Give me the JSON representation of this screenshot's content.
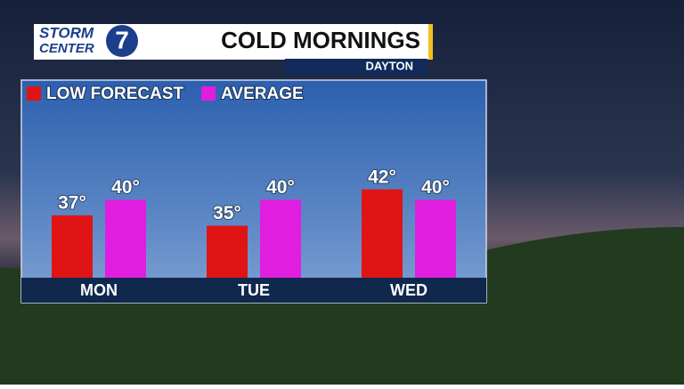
{
  "branding": {
    "line1": "STORM",
    "line2": "CENTER",
    "number": "7"
  },
  "chart_data": {
    "type": "bar",
    "title": "COLD MORNINGS",
    "subtitle": "DAYTON",
    "categories": [
      "MON",
      "TUE",
      "WED"
    ],
    "series": [
      {
        "name": "LOW FORECAST",
        "color": "#e01414",
        "values": [
          37,
          35,
          42
        ],
        "value_labels": [
          "37°",
          "35°",
          "42°"
        ]
      },
      {
        "name": "AVERAGE",
        "color": "#e01ee0",
        "values": [
          40,
          40,
          40
        ],
        "value_labels": [
          "40°",
          "40°",
          "40°"
        ]
      }
    ],
    "ylim": [
      25,
      50
    ],
    "legend": "top-left"
  }
}
